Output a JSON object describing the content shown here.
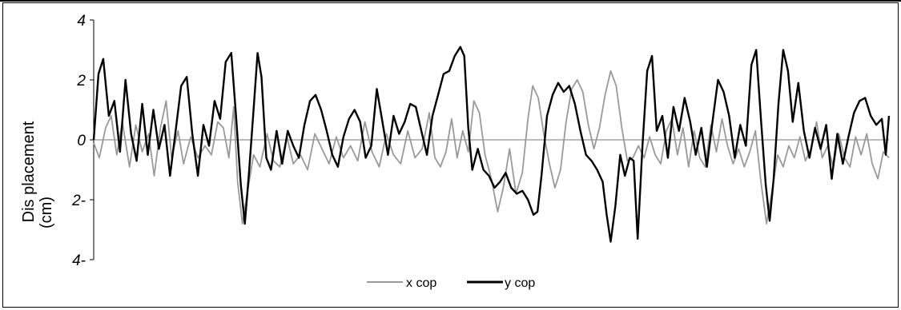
{
  "chart_data": {
    "type": "line",
    "title": "",
    "xlabel": "",
    "ylabel_lines": [
      "Dis placement",
      "(cm)"
    ],
    "ylim": [
      -4,
      4
    ],
    "yticks": [
      {
        "value": 4,
        "label": "4"
      },
      {
        "value": 2,
        "label": "2"
      },
      {
        "value": 0,
        "label": "0"
      },
      {
        "value": -2,
        "label": "-2"
      },
      {
        "value": -4,
        "label": "-4"
      }
    ],
    "ytick_labels_display": [
      "4",
      "2",
      "0",
      "2-",
      "4-"
    ],
    "xlim": [
      0,
      100
    ],
    "grid": false,
    "zero_line": true,
    "legend_position": "bottom",
    "series": [
      {
        "name": "x cop",
        "color": "#999999",
        "points": [
          [
            0,
            -0.1
          ],
          [
            0.7,
            -0.6
          ],
          [
            1.5,
            0.4
          ],
          [
            2.2,
            0.8
          ],
          [
            2.9,
            -0.5
          ],
          [
            3.6,
            0.6
          ],
          [
            4.5,
            -0.9
          ],
          [
            5.3,
            0.5
          ],
          [
            6.1,
            -0.4
          ],
          [
            6.9,
            0.2
          ],
          [
            7.6,
            -1.2
          ],
          [
            8.4,
            0.4
          ],
          [
            9.1,
            1.3
          ],
          [
            9.8,
            -0.6
          ],
          [
            10.6,
            0.3
          ],
          [
            11.3,
            -0.8
          ],
          [
            12.2,
            0.1
          ],
          [
            13.1,
            -0.6
          ],
          [
            14.0,
            -0.2
          ],
          [
            14.8,
            -0.5
          ],
          [
            15.6,
            0.6
          ],
          [
            16.3,
            0.4
          ],
          [
            17.0,
            -0.6
          ],
          [
            17.6,
            1.1
          ],
          [
            18.1,
            -1.4
          ],
          [
            18.7,
            -2.8
          ],
          [
            19.3,
            -1.8
          ],
          [
            20.1,
            -0.5
          ],
          [
            20.9,
            -0.9
          ],
          [
            21.8,
            0.2
          ],
          [
            22.6,
            -0.7
          ],
          [
            23.4,
            -0.9
          ],
          [
            24.3,
            0.1
          ],
          [
            25.1,
            -0.8
          ],
          [
            26.0,
            -0.5
          ],
          [
            26.9,
            -1.0
          ],
          [
            27.8,
            0.2
          ],
          [
            28.7,
            -0.3
          ],
          [
            29.6,
            -0.8
          ],
          [
            30.5,
            0.1
          ],
          [
            31.4,
            -0.6
          ],
          [
            32.3,
            -0.2
          ],
          [
            33.2,
            -0.7
          ],
          [
            34.1,
            0.6
          ],
          [
            35.0,
            -0.4
          ],
          [
            35.9,
            -0.9
          ],
          [
            36.8,
            0.2
          ],
          [
            37.7,
            -0.5
          ],
          [
            38.6,
            -0.8
          ],
          [
            39.5,
            0.3
          ],
          [
            40.4,
            -0.6
          ],
          [
            41.3,
            -0.3
          ],
          [
            42.2,
            0.9
          ],
          [
            42.9,
            -0.6
          ],
          [
            43.6,
            -0.9
          ],
          [
            44.3,
            -0.4
          ],
          [
            45.0,
            0.7
          ],
          [
            45.7,
            -0.6
          ],
          [
            46.4,
            0.3
          ],
          [
            47.1,
            -0.4
          ],
          [
            47.8,
            1.3
          ],
          [
            48.5,
            0.9
          ],
          [
            49.2,
            -0.5
          ],
          [
            50.0,
            -1.3
          ],
          [
            50.8,
            -2.4
          ],
          [
            51.5,
            -1.6
          ],
          [
            52.3,
            -0.3
          ],
          [
            53.1,
            -1.8
          ],
          [
            53.9,
            -1.1
          ],
          [
            54.6,
            0.7
          ],
          [
            55.2,
            1.8
          ],
          [
            55.9,
            1.4
          ],
          [
            56.6,
            0.2
          ],
          [
            57.3,
            -0.8
          ],
          [
            58.0,
            -1.6
          ],
          [
            58.7,
            -1.0
          ],
          [
            59.4,
            0.6
          ],
          [
            60.1,
            1.7
          ],
          [
            60.8,
            2.0
          ],
          [
            61.5,
            1.6
          ],
          [
            62.2,
            0.5
          ],
          [
            62.9,
            -0.3
          ],
          [
            63.6,
            0.4
          ],
          [
            64.3,
            1.5
          ],
          [
            65.0,
            2.3
          ],
          [
            65.7,
            1.8
          ],
          [
            66.4,
            0.4
          ],
          [
            67.1,
            -0.7
          ],
          [
            67.8,
            -0.6
          ],
          [
            68.5,
            -0.2
          ],
          [
            69.2,
            -0.6
          ],
          [
            69.9,
            0.1
          ],
          [
            70.6,
            -0.5
          ],
          [
            71.3,
            -0.8
          ],
          [
            72.0,
            0.3
          ],
          [
            72.7,
            0.7
          ],
          [
            73.4,
            -0.5
          ],
          [
            74.1,
            0.4
          ],
          [
            74.8,
            -0.9
          ],
          [
            75.5,
            0.3
          ],
          [
            76.2,
            -0.6
          ],
          [
            76.9,
            -0.9
          ],
          [
            77.6,
            0.5
          ],
          [
            78.3,
            -0.4
          ],
          [
            79.0,
            0.7
          ],
          [
            79.7,
            -0.2
          ],
          [
            80.4,
            -0.8
          ],
          [
            81.1,
            -0.3
          ],
          [
            81.8,
            -0.9
          ],
          [
            82.5,
            -0.4
          ],
          [
            83.2,
            0.3
          ],
          [
            83.9,
            -1.4
          ],
          [
            84.6,
            -2.8
          ],
          [
            85.3,
            -1.7
          ],
          [
            86.0,
            -0.5
          ],
          [
            86.7,
            -0.9
          ],
          [
            87.4,
            -0.2
          ],
          [
            88.1,
            -0.6
          ],
          [
            88.8,
            0.1
          ],
          [
            89.5,
            -0.7
          ],
          [
            90.2,
            -0.3
          ],
          [
            90.9,
            0.6
          ],
          [
            91.6,
            -0.6
          ],
          [
            92.3,
            -0.2
          ],
          [
            93.0,
            -0.9
          ],
          [
            93.7,
            0.2
          ],
          [
            94.4,
            -0.6
          ],
          [
            95.1,
            -0.9
          ],
          [
            95.8,
            0.1
          ],
          [
            96.5,
            -0.5
          ],
          [
            97.2,
            0.2
          ],
          [
            97.9,
            -0.8
          ],
          [
            98.6,
            -1.3
          ],
          [
            99.3,
            -0.4
          ],
          [
            100,
            -0.6
          ]
        ]
      },
      {
        "name": "y cop",
        "color": "#000000",
        "points": [
          [
            0,
            0
          ],
          [
            0.6,
            2.2
          ],
          [
            1.2,
            2.7
          ],
          [
            1.9,
            0.8
          ],
          [
            2.6,
            1.3
          ],
          [
            3.3,
            -0.4
          ],
          [
            4.0,
            2.0
          ],
          [
            4.7,
            0.2
          ],
          [
            5.4,
            -0.7
          ],
          [
            6.1,
            1.2
          ],
          [
            6.8,
            -0.5
          ],
          [
            7.5,
            1.0
          ],
          [
            8.2,
            -0.3
          ],
          [
            8.9,
            0.5
          ],
          [
            9.6,
            -1.2
          ],
          [
            10.3,
            0.3
          ],
          [
            11.0,
            1.8
          ],
          [
            11.7,
            2.1
          ],
          [
            12.4,
            0.2
          ],
          [
            13.1,
            -1.2
          ],
          [
            13.8,
            0.5
          ],
          [
            14.5,
            -0.2
          ],
          [
            15.2,
            1.3
          ],
          [
            15.9,
            0.7
          ],
          [
            16.6,
            2.6
          ],
          [
            17.3,
            2.9
          ],
          [
            17.9,
            0.8
          ],
          [
            18.5,
            -1.5
          ],
          [
            19.0,
            -2.8
          ],
          [
            19.5,
            -1.2
          ],
          [
            20.1,
            1.0
          ],
          [
            20.6,
            2.9
          ],
          [
            21.1,
            2.1
          ],
          [
            21.7,
            -0.6
          ],
          [
            22.3,
            -1.0
          ],
          [
            23.0,
            0.3
          ],
          [
            23.7,
            -0.8
          ],
          [
            24.4,
            0.3
          ],
          [
            25.1,
            -0.2
          ],
          [
            25.8,
            -0.6
          ],
          [
            26.5,
            0.5
          ],
          [
            27.2,
            1.3
          ],
          [
            27.9,
            1.5
          ],
          [
            28.6,
            1.0
          ],
          [
            29.3,
            0.3
          ],
          [
            30.0,
            -0.5
          ],
          [
            30.7,
            -0.9
          ],
          [
            31.4,
            0.1
          ],
          [
            32.1,
            0.7
          ],
          [
            32.8,
            1.0
          ],
          [
            33.5,
            0.6
          ],
          [
            34.2,
            -0.6
          ],
          [
            34.9,
            -0.2
          ],
          [
            35.6,
            1.7
          ],
          [
            36.3,
            0.6
          ],
          [
            37.0,
            -0.5
          ],
          [
            37.7,
            0.8
          ],
          [
            38.4,
            0.2
          ],
          [
            39.1,
            0.6
          ],
          [
            39.8,
            1.2
          ],
          [
            40.5,
            1.1
          ],
          [
            41.2,
            0.3
          ],
          [
            41.9,
            -0.5
          ],
          [
            42.6,
            0.8
          ],
          [
            43.3,
            1.5
          ],
          [
            44.0,
            2.2
          ],
          [
            44.7,
            2.3
          ],
          [
            45.4,
            2.8
          ],
          [
            46.1,
            3.1
          ],
          [
            46.6,
            2.8
          ],
          [
            47.1,
            0.4
          ],
          [
            47.6,
            -1.0
          ],
          [
            48.3,
            -0.3
          ],
          [
            49.0,
            -1.0
          ],
          [
            49.7,
            -1.2
          ],
          [
            50.4,
            -1.6
          ],
          [
            51.1,
            -1.4
          ],
          [
            51.8,
            -1.1
          ],
          [
            52.5,
            -1.6
          ],
          [
            53.2,
            -1.8
          ],
          [
            53.9,
            -1.7
          ],
          [
            54.6,
            -2.0
          ],
          [
            55.3,
            -2.5
          ],
          [
            55.8,
            -2.4
          ],
          [
            56.3,
            -1.2
          ],
          [
            57.0,
            0.8
          ],
          [
            57.7,
            1.5
          ],
          [
            58.4,
            1.9
          ],
          [
            59.1,
            1.6
          ],
          [
            59.8,
            1.8
          ],
          [
            60.5,
            1.2
          ],
          [
            61.2,
            0.3
          ],
          [
            61.9,
            -0.5
          ],
          [
            62.6,
            -0.7
          ],
          [
            63.3,
            -1.0
          ],
          [
            64.0,
            -1.4
          ],
          [
            64.5,
            -2.5
          ],
          [
            65.0,
            -3.4
          ],
          [
            65.6,
            -2.2
          ],
          [
            66.2,
            -0.5
          ],
          [
            66.8,
            -1.2
          ],
          [
            67.4,
            -0.6
          ],
          [
            67.9,
            -0.7
          ],
          [
            68.4,
            -3.3
          ],
          [
            69.0,
            -0.2
          ],
          [
            69.6,
            2.3
          ],
          [
            70.2,
            2.8
          ],
          [
            70.8,
            0.3
          ],
          [
            71.5,
            0.8
          ],
          [
            72.2,
            -0.6
          ],
          [
            72.9,
            1.1
          ],
          [
            73.6,
            0.3
          ],
          [
            74.3,
            1.4
          ],
          [
            75.0,
            0.6
          ],
          [
            75.7,
            -0.5
          ],
          [
            76.4,
            0.4
          ],
          [
            77.1,
            -0.9
          ],
          [
            77.8,
            0.6
          ],
          [
            78.5,
            2.0
          ],
          [
            79.2,
            1.6
          ],
          [
            79.9,
            0.8
          ],
          [
            80.6,
            -0.6
          ],
          [
            81.3,
            0.5
          ],
          [
            82.0,
            -0.2
          ],
          [
            82.7,
            2.5
          ],
          [
            83.3,
            3.0
          ],
          [
            83.9,
            0.7
          ],
          [
            84.5,
            -1.5
          ],
          [
            85.0,
            -2.7
          ],
          [
            85.5,
            -1.3
          ],
          [
            86.1,
            1.2
          ],
          [
            86.7,
            3.0
          ],
          [
            87.3,
            2.3
          ],
          [
            87.9,
            0.6
          ],
          [
            88.6,
            1.9
          ],
          [
            89.3,
            0.3
          ],
          [
            90.0,
            -0.6
          ],
          [
            90.7,
            0.4
          ],
          [
            91.4,
            -0.3
          ],
          [
            92.1,
            0.5
          ],
          [
            92.8,
            -1.3
          ],
          [
            93.5,
            0.2
          ],
          [
            94.2,
            -0.8
          ],
          [
            94.9,
            0.1
          ],
          [
            95.6,
            0.9
          ],
          [
            96.3,
            1.3
          ],
          [
            97.0,
            1.4
          ],
          [
            97.7,
            0.8
          ],
          [
            98.4,
            0.5
          ],
          [
            99.1,
            0.7
          ],
          [
            99.6,
            -0.5
          ],
          [
            100,
            0.8
          ]
        ]
      }
    ]
  }
}
